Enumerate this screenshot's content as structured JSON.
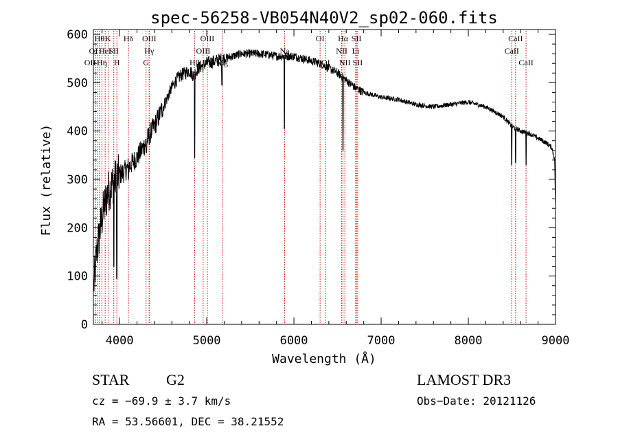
{
  "chart_data": {
    "type": "line",
    "title": "spec-56258-VB054N40V2_sp02-060.fits",
    "xlabel": "Wavelength (Å)",
    "ylabel": "Flux (relative)",
    "xlim": [
      3700,
      9000
    ],
    "ylim": [
      0,
      610
    ],
    "xticks": [
      4000,
      5000,
      6000,
      7000,
      8000,
      9000
    ],
    "yticks": [
      0,
      100,
      200,
      300,
      400,
      500,
      600
    ],
    "line_color": "#000000",
    "marker_color": "#c00000",
    "spectrum_anchors": {
      "x": [
        3705,
        3740,
        3780,
        3820,
        3860,
        3900,
        3950,
        4000,
        4050,
        4100,
        4150,
        4200,
        4250,
        4300,
        4350,
        4400,
        4450,
        4500,
        4550,
        4600,
        4650,
        4700,
        4750,
        4800,
        4850,
        4900,
        4950,
        5000,
        5100,
        5200,
        5300,
        5400,
        5500,
        5600,
        5700,
        5800,
        5900,
        6000,
        6100,
        6200,
        6300,
        6400,
        6500,
        6600,
        6700,
        6800,
        6900,
        7000,
        7200,
        7400,
        7600,
        7800,
        8000,
        8200,
        8400,
        8500,
        8600,
        8700,
        8800,
        8900,
        8960,
        8990,
        9000
      ],
      "y": [
        80,
        150,
        200,
        240,
        270,
        285,
        300,
        310,
        315,
        325,
        335,
        345,
        360,
        375,
        395,
        410,
        430,
        450,
        470,
        490,
        505,
        515,
        520,
        525,
        515,
        530,
        535,
        540,
        545,
        550,
        555,
        560,
        560,
        560,
        558,
        555,
        555,
        555,
        550,
        545,
        540,
        530,
        520,
        505,
        490,
        480,
        475,
        470,
        465,
        455,
        450,
        455,
        460,
        450,
        430,
        410,
        400,
        395,
        385,
        375,
        365,
        340,
        240
      ]
    },
    "spectrum_dips": [
      {
        "x": 3934,
        "y": 120
      },
      {
        "x": 3969,
        "y": 95
      },
      {
        "x": 4102,
        "y": 300
      },
      {
        "x": 4308,
        "y": 355
      },
      {
        "x": 4861,
        "y": 345
      },
      {
        "x": 5175,
        "y": 495
      },
      {
        "x": 5890,
        "y": 405
      },
      {
        "x": 6563,
        "y": 360
      },
      {
        "x": 8498,
        "y": 330
      },
      {
        "x": 8542,
        "y": 335
      },
      {
        "x": 8662,
        "y": 330
      }
    ],
    "line_markers": [
      {
        "x": 3727,
        "label": "OII",
        "row": 3,
        "anchor": "end"
      },
      {
        "x": 3750,
        "label": "OI",
        "row": 2,
        "anchor": "end"
      },
      {
        "x": 3770,
        "label": "Hθ",
        "row": 1,
        "anchor": "middle"
      },
      {
        "x": 3798,
        "label": "Hη",
        "row": 3,
        "anchor": "middle"
      },
      {
        "x": 3835,
        "label": "HeI",
        "row": 2,
        "anchor": "middle"
      },
      {
        "x": 3869,
        "label": "K",
        "row": 1,
        "anchor": "middle"
      },
      {
        "x": 3934,
        "label": "SII",
        "row": 2,
        "anchor": "middle"
      },
      {
        "x": 3969,
        "label": "H",
        "row": 3,
        "anchor": "middle"
      },
      {
        "x": 4102,
        "label": "Hδ",
        "row": 1,
        "anchor": "middle"
      },
      {
        "x": 4340,
        "label": "OIII",
        "row": 1,
        "anchor": "middle"
      },
      {
        "x": 4340,
        "label": "Hγ",
        "row": 2,
        "anchor": "middle"
      },
      {
        "x": 4304,
        "label": "G",
        "row": 3,
        "anchor": "middle"
      },
      {
        "x": 4861,
        "label": "Hβ",
        "row": 3,
        "anchor": "middle"
      },
      {
        "x": 5007,
        "label": "OIII",
        "row": 1,
        "anchor": "middle"
      },
      {
        "x": 4959,
        "label": "OIII",
        "row": 2,
        "anchor": "middle"
      },
      {
        "x": 5178,
        "label": "Mg",
        "row": 3,
        "anchor": "middle"
      },
      {
        "x": 5893,
        "label": "Na",
        "row": 2,
        "anchor": "middle"
      },
      {
        "x": 6300,
        "label": "OI",
        "row": 1,
        "anchor": "middle"
      },
      {
        "x": 6364,
        "label": "OI",
        "row": 3,
        "anchor": "middle"
      },
      {
        "x": 6563,
        "label": "Hα",
        "row": 1,
        "anchor": "middle"
      },
      {
        "x": 6548,
        "label": "NII",
        "row": 2,
        "anchor": "middle"
      },
      {
        "x": 6584,
        "label": "NII",
        "row": 3,
        "anchor": "middle"
      },
      {
        "x": 6717,
        "label": "SII",
        "row": 1,
        "anchor": "middle"
      },
      {
        "x": 6708,
        "label": "Li",
        "row": 2,
        "anchor": "middle"
      },
      {
        "x": 6731,
        "label": "SII",
        "row": 3,
        "anchor": "middle"
      },
      {
        "x": 8498,
        "label": "CaII",
        "row": 2,
        "anchor": "middle"
      },
      {
        "x": 8542,
        "label": "CaII",
        "row": 1,
        "anchor": "middle"
      },
      {
        "x": 8662,
        "label": "CaII",
        "row": 3,
        "anchor": "middle"
      }
    ]
  },
  "info": {
    "class": "STAR",
    "subclass": "G2",
    "survey": "LAMOST DR3",
    "cz": "cz = −69.9 ± 3.7 km/s",
    "obs_date": "Obs−Date: 20121126",
    "coords": "RA =  53.56601, DEC =  38.21552"
  }
}
